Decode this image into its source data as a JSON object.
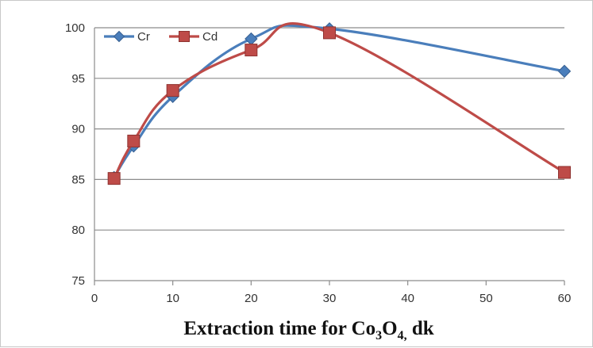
{
  "chart_data": {
    "type": "line",
    "x": [
      2.5,
      5,
      10,
      20,
      30,
      60
    ],
    "series": [
      {
        "name": "Cr",
        "values": [
          85.2,
          88.3,
          93.2,
          98.9,
          99.9,
          95.7
        ],
        "color": "#4a7ebb",
        "marker": "diamond"
      },
      {
        "name": "Cd",
        "values": [
          85.1,
          88.8,
          93.8,
          97.8,
          99.5,
          85.7
        ],
        "color": "#be4b48",
        "marker": "square"
      }
    ],
    "xlim": [
      0,
      60
    ],
    "ylim": [
      75,
      100
    ],
    "xticks": [
      0,
      10,
      20,
      30,
      40,
      50,
      60
    ],
    "yticks": [
      75,
      80,
      85,
      90,
      95,
      100
    ],
    "xlabel": {
      "prefix": "Extraction  time for Co",
      "sub1": "3",
      "mid": "O",
      "sub2": "4,",
      "suffix": " dk"
    },
    "ylabel": "",
    "grid": "horizontal",
    "legend_position": "top-left",
    "smooth": true
  }
}
